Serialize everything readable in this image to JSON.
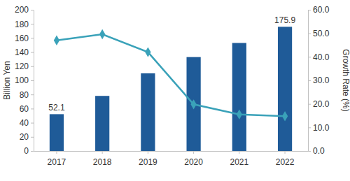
{
  "chart_data": {
    "type": "bar",
    "y_label": "Billion Yen",
    "y2_label": "Growth Rate (%)",
    "categories": [
      "2017",
      "2018",
      "2019",
      "2020",
      "2021",
      "2022"
    ],
    "series": [
      {
        "type": "bar",
        "color": "#1f5b98",
        "values": [
          52.1,
          78,
          110,
          133,
          153,
          175.9
        ],
        "value_labels": [
          "52.1",
          null,
          null,
          null,
          null,
          "175.9"
        ]
      },
      {
        "type": "line",
        "axis": "y2",
        "color": "#3aa2b9",
        "marker": "diamond",
        "values": [
          47.0,
          49.6,
          42.0,
          19.8,
          15.5,
          14.8
        ]
      }
    ],
    "data_labels": true,
    "ylim": [
      0,
      200
    ],
    "yticks": [
      0,
      20,
      40,
      60,
      80,
      100,
      120,
      140,
      160,
      180,
      200
    ],
    "y2lim": [
      0,
      60
    ],
    "y2ticks": [
      {
        "value": 0,
        "label": "0.0"
      },
      {
        "value": 10,
        "label": "10.0"
      },
      {
        "value": 20,
        "label": "20.0"
      },
      {
        "value": 30,
        "label": "30.0"
      },
      {
        "value": 40,
        "label": "40.0"
      },
      {
        "value": 50,
        "label": "50.0"
      },
      {
        "value": 60,
        "label": "60.0"
      }
    ],
    "grid": false
  }
}
